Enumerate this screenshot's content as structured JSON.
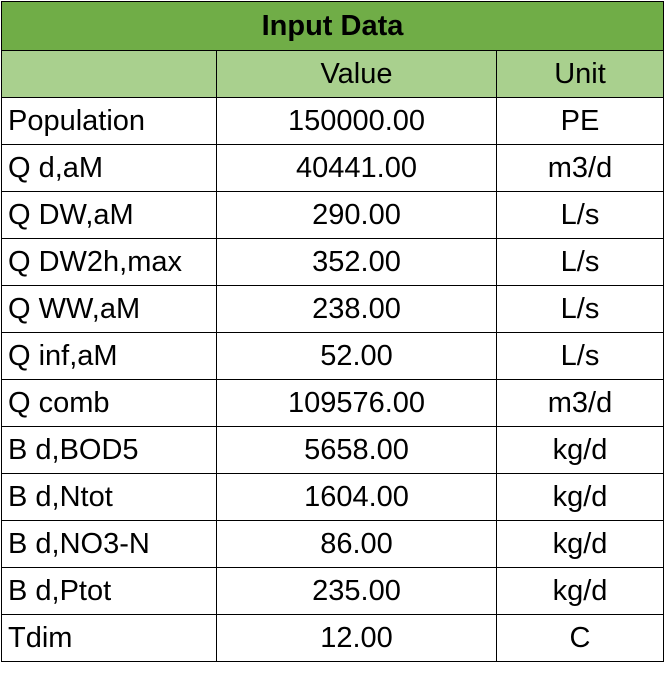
{
  "title": "Input Data",
  "headers": {
    "parameter": "",
    "value": "Value",
    "unit": "Unit"
  },
  "rows": [
    {
      "label": "Population",
      "value": "150000.00",
      "unit": "PE"
    },
    {
      "label": "Q d,aM",
      "value": "40441.00",
      "unit": "m3/d"
    },
    {
      "label": "Q DW,aM",
      "value": "290.00",
      "unit": "L/s"
    },
    {
      "label": "Q DW2h,max",
      "value": "352.00",
      "unit": "L/s"
    },
    {
      "label": "Q WW,aM",
      "value": "238.00",
      "unit": "L/s"
    },
    {
      "label": "Q inf,aM",
      "value": "52.00",
      "unit": "L/s"
    },
    {
      "label": "Q comb",
      "value": "109576.00",
      "unit": "m3/d"
    },
    {
      "label": "B d,BOD5",
      "value": "5658.00",
      "unit": "kg/d"
    },
    {
      "label": "B d,Ntot",
      "value": "1604.00",
      "unit": "kg/d"
    },
    {
      "label": "B d,NO3-N",
      "value": "86.00",
      "unit": "kg/d"
    },
    {
      "label": "B d,Ptot",
      "value": "235.00",
      "unit": "kg/d"
    },
    {
      "label": "Tdim",
      "value": "12.00",
      "unit": "C"
    }
  ],
  "colors": {
    "title_fill": "#70ad47",
    "header_fill": "#a9d08e",
    "border": "#000000"
  }
}
